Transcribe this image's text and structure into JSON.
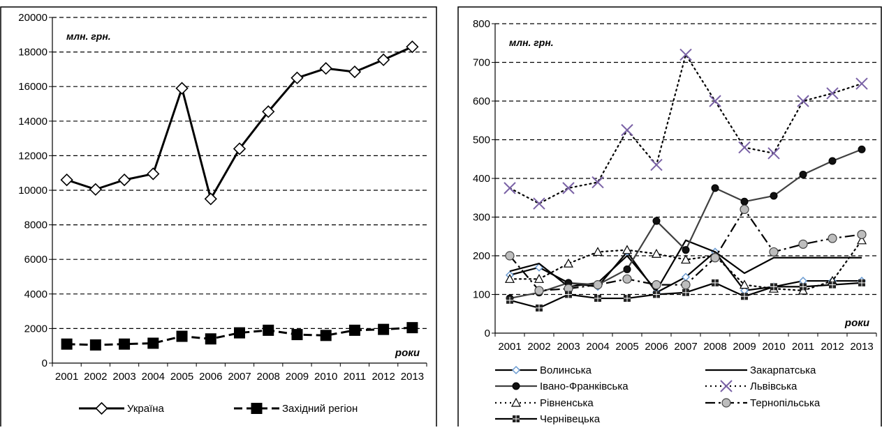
{
  "chart_data": [
    {
      "type": "line",
      "unit_label": "млн. грн.",
      "xlabel": "роки",
      "ylim": [
        0,
        20000
      ],
      "yticks": [
        0,
        2000,
        4000,
        6000,
        8000,
        10000,
        12000,
        14000,
        16000,
        18000,
        20000
      ],
      "grid": "horizontal dashed",
      "legend_position": "bottom",
      "x": [
        "2001",
        "2002",
        "2003",
        "2004",
        "2005",
        "2006",
        "2007",
        "2008",
        "2009",
        "2010",
        "2011",
        "2012",
        "2013"
      ],
      "series": [
        {
          "name": "Україна",
          "style": "solid",
          "marker": "diamond-open",
          "color": "#000000",
          "values": [
            10600,
            10050,
            10600,
            10950,
            15900,
            9500,
            12400,
            14550,
            16500,
            17050,
            16850,
            17550,
            18300
          ]
        },
        {
          "name": "Західний регіон",
          "style": "dashed",
          "marker": "square-filled",
          "color": "#000000",
          "values": [
            1100,
            1050,
            1100,
            1150,
            1550,
            1400,
            1750,
            1900,
            1650,
            1600,
            1900,
            1950,
            2050
          ]
        }
      ]
    },
    {
      "type": "line",
      "unit_label": "млн. грн.",
      "xlabel": "роки",
      "ylim": [
        0,
        800
      ],
      "yticks": [
        0,
        100,
        200,
        300,
        400,
        500,
        600,
        700,
        800
      ],
      "grid": "horizontal dashed",
      "legend_position": "bottom",
      "x": [
        "2001",
        "2002",
        "2003",
        "2004",
        "2005",
        "2006",
        "2007",
        "2008",
        "2009",
        "2010",
        "2011",
        "2012",
        "2013"
      ],
      "series": [
        {
          "name": "Волинська",
          "style": "solid",
          "marker": "diamond-blue",
          "color": "#000000",
          "values": [
            150,
            170,
            130,
            120,
            210,
            105,
            145,
            210,
            110,
            120,
            135,
            135,
            135
          ]
        },
        {
          "name": "Закарпатська",
          "style": "solid",
          "marker": "none",
          "color": "#000000",
          "values": [
            160,
            180,
            120,
            130,
            200,
            110,
            240,
            210,
            155,
            195,
            195,
            195,
            195
          ]
        },
        {
          "name": "Івано-Франківська",
          "style": "solid",
          "marker": "circle-filled",
          "color": "#404040",
          "values": [
            90,
            105,
            130,
            125,
            165,
            290,
            215,
            375,
            340,
            355,
            410,
            445,
            475
          ]
        },
        {
          "name": "Львівська",
          "style": "dotted",
          "marker": "x-purple",
          "color": "#000000",
          "values": [
            375,
            335,
            375,
            390,
            525,
            435,
            720,
            600,
            480,
            465,
            600,
            620,
            645
          ]
        },
        {
          "name": "Рівненська",
          "style": "dotted",
          "marker": "triangle-open",
          "color": "#000000",
          "values": [
            140,
            140,
            180,
            210,
            215,
            205,
            190,
            200,
            125,
            115,
            110,
            135,
            240
          ]
        },
        {
          "name": "Тернопільська",
          "style": "dashdot",
          "marker": "circle-grey",
          "color": "#000000",
          "values": [
            200,
            110,
            115,
            125,
            140,
            125,
            125,
            195,
            320,
            210,
            230,
            245,
            255
          ]
        },
        {
          "name": "Чернівецька",
          "style": "solid",
          "marker": "square-cross",
          "color": "#000000",
          "values": [
            85,
            65,
            100,
            90,
            90,
            100,
            105,
            130,
            95,
            120,
            120,
            125,
            130
          ]
        }
      ]
    }
  ]
}
